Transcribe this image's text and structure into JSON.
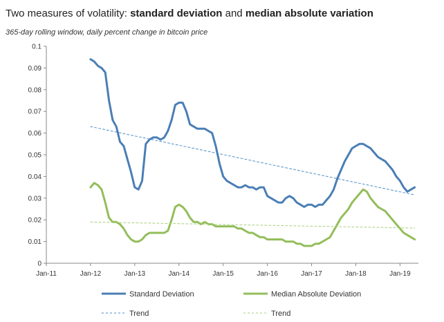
{
  "header": {
    "title_part1": "Two measures of  volatility: ",
    "title_bold1": "standard deviation",
    "title_part2": " and ",
    "title_bold2": "median absolute variation",
    "subtitle": "365-day rolling window, daily percent change in bitcoin price"
  },
  "chart_data": {
    "type": "line",
    "title": "Two measures of  volatility: standard deviation and median absolute variation",
    "subtitle": "365-day rolling window, daily percent change in bitcoin price",
    "xlabel": "",
    "ylabel": "",
    "x_ticks": [
      "Jan-11",
      "Jan-12",
      "Jan-13",
      "Jan-14",
      "Jan-15",
      "Jan-16",
      "Jan-17",
      "Jan-18",
      "Jan-19"
    ],
    "y_ticks": [
      "0",
      "0.01",
      "0.02",
      "0.03",
      "0.04",
      "0.05",
      "0.06",
      "0.07",
      "0.08",
      "0.09",
      "0.1"
    ],
    "xlim": [
      "2011-01",
      "2019-06"
    ],
    "ylim": [
      0,
      0.1
    ],
    "grid": false,
    "legend_position": "bottom",
    "colors": {
      "std": "#4a7eb5",
      "mad": "#93bd5a",
      "std_trend": "#4a8ec9",
      "mad_trend": "#a6cf78"
    },
    "series": [
      {
        "name": "Standard Deviation",
        "style": "solid",
        "points": [
          [
            "2012-01",
            0.094
          ],
          [
            "2012-02",
            0.093
          ],
          [
            "2012-03",
            0.091
          ],
          [
            "2012-04",
            0.09
          ],
          [
            "2012-05",
            0.088
          ],
          [
            "2012-06",
            0.075
          ],
          [
            "2012-07",
            0.066
          ],
          [
            "2012-08",
            0.063
          ],
          [
            "2012-09",
            0.056
          ],
          [
            "2012-10",
            0.054
          ],
          [
            "2012-11",
            0.048
          ],
          [
            "2012-12",
            0.042
          ],
          [
            "2013-01",
            0.035
          ],
          [
            "2013-02",
            0.034
          ],
          [
            "2013-03",
            0.038
          ],
          [
            "2013-04",
            0.055
          ],
          [
            "2013-05",
            0.057
          ],
          [
            "2013-06",
            0.058
          ],
          [
            "2013-07",
            0.058
          ],
          [
            "2013-08",
            0.057
          ],
          [
            "2013-09",
            0.058
          ],
          [
            "2013-10",
            0.061
          ],
          [
            "2013-11",
            0.066
          ],
          [
            "2013-12",
            0.073
          ],
          [
            "2014-01",
            0.074
          ],
          [
            "2014-02",
            0.074
          ],
          [
            "2014-03",
            0.07
          ],
          [
            "2014-04",
            0.064
          ],
          [
            "2014-05",
            0.063
          ],
          [
            "2014-06",
            0.062
          ],
          [
            "2014-07",
            0.062
          ],
          [
            "2014-08",
            0.062
          ],
          [
            "2014-09",
            0.061
          ],
          [
            "2014-10",
            0.06
          ],
          [
            "2014-11",
            0.054
          ],
          [
            "2014-12",
            0.046
          ],
          [
            "2015-01",
            0.04
          ],
          [
            "2015-02",
            0.038
          ],
          [
            "2015-03",
            0.037
          ],
          [
            "2015-04",
            0.036
          ],
          [
            "2015-05",
            0.035
          ],
          [
            "2015-06",
            0.035
          ],
          [
            "2015-07",
            0.036
          ],
          [
            "2015-08",
            0.035
          ],
          [
            "2015-09",
            0.035
          ],
          [
            "2015-10",
            0.034
          ],
          [
            "2015-11",
            0.035
          ],
          [
            "2015-12",
            0.035
          ],
          [
            "2016-01",
            0.031
          ],
          [
            "2016-02",
            0.03
          ],
          [
            "2016-03",
            0.029
          ],
          [
            "2016-04",
            0.028
          ],
          [
            "2016-05",
            0.028
          ],
          [
            "2016-06",
            0.03
          ],
          [
            "2016-07",
            0.031
          ],
          [
            "2016-08",
            0.03
          ],
          [
            "2016-09",
            0.028
          ],
          [
            "2016-10",
            0.027
          ],
          [
            "2016-11",
            0.026
          ],
          [
            "2016-12",
            0.027
          ],
          [
            "2017-01",
            0.027
          ],
          [
            "2017-02",
            0.026
          ],
          [
            "2017-03",
            0.027
          ],
          [
            "2017-04",
            0.027
          ],
          [
            "2017-05",
            0.029
          ],
          [
            "2017-06",
            0.031
          ],
          [
            "2017-07",
            0.034
          ],
          [
            "2017-08",
            0.039
          ],
          [
            "2017-09",
            0.043
          ],
          [
            "2017-10",
            0.047
          ],
          [
            "2017-11",
            0.05
          ],
          [
            "2017-12",
            0.053
          ],
          [
            "2018-01",
            0.054
          ],
          [
            "2018-02",
            0.055
          ],
          [
            "2018-03",
            0.055
          ],
          [
            "2018-04",
            0.054
          ],
          [
            "2018-05",
            0.053
          ],
          [
            "2018-06",
            0.051
          ],
          [
            "2018-07",
            0.049
          ],
          [
            "2018-08",
            0.048
          ],
          [
            "2018-09",
            0.047
          ],
          [
            "2018-10",
            0.045
          ],
          [
            "2018-11",
            0.043
          ],
          [
            "2018-12",
            0.04
          ],
          [
            "2019-01",
            0.038
          ],
          [
            "2019-02",
            0.035
          ],
          [
            "2019-03",
            0.033
          ],
          [
            "2019-04",
            0.034
          ],
          [
            "2019-05",
            0.035
          ]
        ]
      },
      {
        "name": "Median Absolute Deviation",
        "style": "solid",
        "points": [
          [
            "2012-01",
            0.035
          ],
          [
            "2012-02",
            0.037
          ],
          [
            "2012-03",
            0.036
          ],
          [
            "2012-04",
            0.034
          ],
          [
            "2012-05",
            0.028
          ],
          [
            "2012-06",
            0.021
          ],
          [
            "2012-07",
            0.019
          ],
          [
            "2012-08",
            0.019
          ],
          [
            "2012-09",
            0.018
          ],
          [
            "2012-10",
            0.016
          ],
          [
            "2012-11",
            0.013
          ],
          [
            "2012-12",
            0.011
          ],
          [
            "2013-01",
            0.01
          ],
          [
            "2013-02",
            0.01
          ],
          [
            "2013-03",
            0.011
          ],
          [
            "2013-04",
            0.013
          ],
          [
            "2013-05",
            0.014
          ],
          [
            "2013-06",
            0.014
          ],
          [
            "2013-07",
            0.014
          ],
          [
            "2013-08",
            0.014
          ],
          [
            "2013-09",
            0.014
          ],
          [
            "2013-10",
            0.015
          ],
          [
            "2013-11",
            0.02
          ],
          [
            "2013-12",
            0.026
          ],
          [
            "2014-01",
            0.027
          ],
          [
            "2014-02",
            0.026
          ],
          [
            "2014-03",
            0.024
          ],
          [
            "2014-04",
            0.021
          ],
          [
            "2014-05",
            0.019
          ],
          [
            "2014-06",
            0.019
          ],
          [
            "2014-07",
            0.018
          ],
          [
            "2014-08",
            0.019
          ],
          [
            "2014-09",
            0.018
          ],
          [
            "2014-10",
            0.018
          ],
          [
            "2014-11",
            0.017
          ],
          [
            "2014-12",
            0.017
          ],
          [
            "2015-01",
            0.017
          ],
          [
            "2015-02",
            0.017
          ],
          [
            "2015-03",
            0.017
          ],
          [
            "2015-04",
            0.017
          ],
          [
            "2015-05",
            0.016
          ],
          [
            "2015-06",
            0.016
          ],
          [
            "2015-07",
            0.015
          ],
          [
            "2015-08",
            0.014
          ],
          [
            "2015-09",
            0.014
          ],
          [
            "2015-10",
            0.013
          ],
          [
            "2015-11",
            0.012
          ],
          [
            "2015-12",
            0.012
          ],
          [
            "2016-01",
            0.011
          ],
          [
            "2016-02",
            0.011
          ],
          [
            "2016-03",
            0.011
          ],
          [
            "2016-04",
            0.011
          ],
          [
            "2016-05",
            0.011
          ],
          [
            "2016-06",
            0.01
          ],
          [
            "2016-07",
            0.01
          ],
          [
            "2016-08",
            0.01
          ],
          [
            "2016-09",
            0.009
          ],
          [
            "2016-10",
            0.009
          ],
          [
            "2016-11",
            0.008
          ],
          [
            "2016-12",
            0.008
          ],
          [
            "2017-01",
            0.008
          ],
          [
            "2017-02",
            0.009
          ],
          [
            "2017-03",
            0.009
          ],
          [
            "2017-04",
            0.01
          ],
          [
            "2017-05",
            0.011
          ],
          [
            "2017-06",
            0.012
          ],
          [
            "2017-07",
            0.015
          ],
          [
            "2017-08",
            0.018
          ],
          [
            "2017-09",
            0.021
          ],
          [
            "2017-10",
            0.023
          ],
          [
            "2017-11",
            0.025
          ],
          [
            "2017-12",
            0.028
          ],
          [
            "2018-01",
            0.03
          ],
          [
            "2018-02",
            0.032
          ],
          [
            "2018-03",
            0.034
          ],
          [
            "2018-04",
            0.033
          ],
          [
            "2018-05",
            0.03
          ],
          [
            "2018-06",
            0.028
          ],
          [
            "2018-07",
            0.026
          ],
          [
            "2018-08",
            0.025
          ],
          [
            "2018-09",
            0.024
          ],
          [
            "2018-10",
            0.022
          ],
          [
            "2018-11",
            0.02
          ],
          [
            "2018-12",
            0.018
          ],
          [
            "2019-01",
            0.016
          ],
          [
            "2019-02",
            0.014
          ],
          [
            "2019-03",
            0.013
          ],
          [
            "2019-04",
            0.012
          ],
          [
            "2019-05",
            0.011
          ]
        ]
      },
      {
        "name": "Trend",
        "style": "dashed",
        "trend_for": "Standard Deviation",
        "points": [
          [
            "2012-01",
            0.063
          ],
          [
            "2019-05",
            0.0315
          ]
        ]
      },
      {
        "name": "Trend",
        "style": "dashed",
        "trend_for": "Median Absolute Deviation",
        "points": [
          [
            "2012-01",
            0.019
          ],
          [
            "2019-05",
            0.0162
          ]
        ]
      }
    ]
  }
}
